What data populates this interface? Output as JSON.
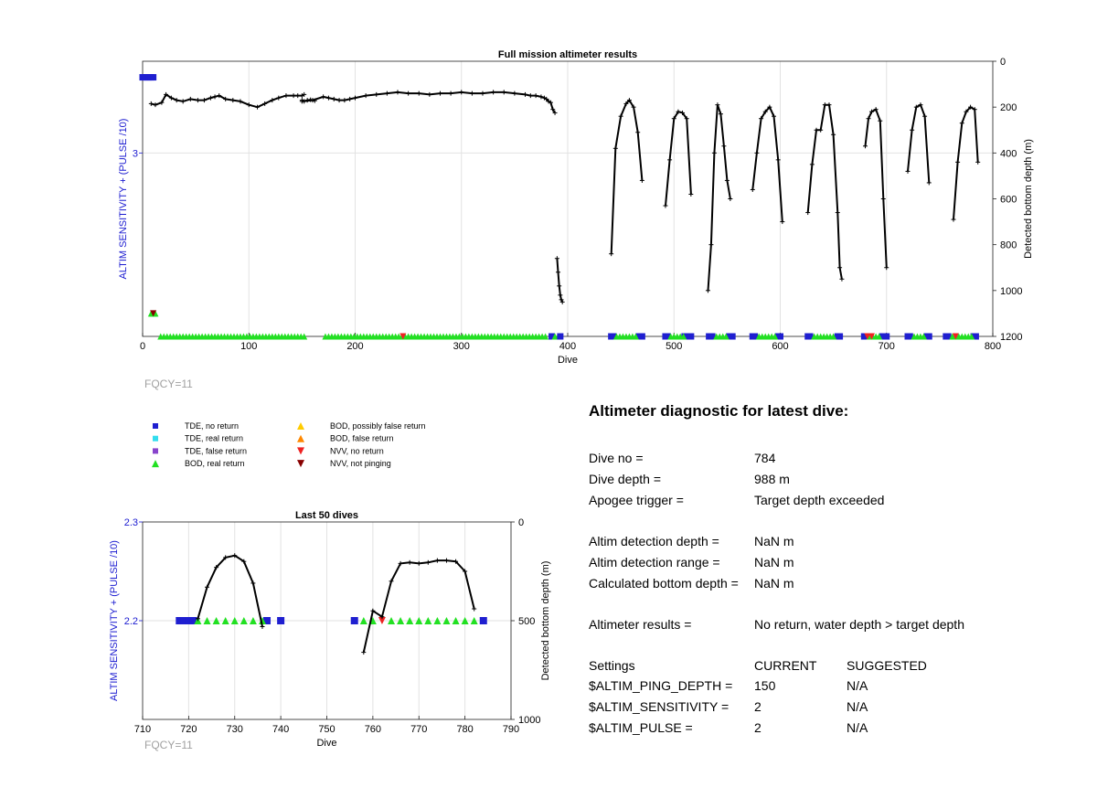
{
  "colors": {
    "tde_no_return": "#1f1fd0",
    "tde_real_return": "#33ddee",
    "tde_false_return": "#8844cc",
    "bod_real_return": "#22e022",
    "bod_possibly_false": "#ffcc00",
    "bod_false": "#ff8800",
    "nvv_no_return": "#ee2222",
    "nvv_not_pinging": "#880000",
    "altitude_line": "#000000",
    "left_axis": "#1a1ad0"
  },
  "legend": {
    "items": [
      {
        "label": "TDE, no return",
        "marker": "square",
        "color_key": "tde_no_return"
      },
      {
        "label": "TDE, real return",
        "marker": "square",
        "color_key": "tde_real_return"
      },
      {
        "label": "TDE, false return",
        "marker": "square",
        "color_key": "tde_false_return"
      },
      {
        "label": "BOD, real return",
        "marker": "triangle-up",
        "color_key": "bod_real_return"
      },
      {
        "label": "BOD, possibly false return",
        "marker": "triangle-up",
        "color_key": "bod_possibly_false"
      },
      {
        "label": "BOD, false return",
        "marker": "triangle-up",
        "color_key": "bod_false"
      },
      {
        "label": "NVV, no return",
        "marker": "triangle-down",
        "color_key": "nvv_no_return"
      },
      {
        "label": "NVV, not pinging",
        "marker": "triangle-down",
        "color_key": "nvv_not_pinging"
      }
    ]
  },
  "chart_data": [
    {
      "type": "scatter",
      "title": "Full mission altimeter results",
      "xlabel": "Dive",
      "ylabel_left": "ALTIM SENSITIVITY + (PULSE /10)",
      "ylabel_right": "Detected bottom depth (m)",
      "xlim": [
        0,
        800
      ],
      "xticks": [
        0,
        100,
        200,
        300,
        400,
        500,
        600,
        700,
        800
      ],
      "ylim_left": [
        2.2,
        3.4
      ],
      "yticks_left": [
        3
      ],
      "ylim_right": [
        1200,
        0
      ],
      "yticks_right": [
        0,
        200,
        400,
        600,
        800,
        1000,
        1200
      ],
      "grid": true,
      "footnote": "FQCY=11",
      "depth_segments": [
        {
          "x": [
            8,
            12,
            18,
            22,
            27,
            32,
            38,
            45,
            52,
            58,
            64,
            68,
            72,
            78,
            85,
            92,
            100,
            108,
            115,
            122,
            128,
            135,
            142,
            146,
            150,
            152
          ],
          "y": [
            185,
            190,
            180,
            145,
            160,
            170,
            175,
            165,
            170,
            170,
            160,
            155,
            150,
            165,
            170,
            175,
            190,
            200,
            185,
            170,
            160,
            150,
            150,
            150,
            150,
            145
          ],
          "marker": true
        },
        {
          "x": [
            150,
            152,
            155,
            158,
            162
          ],
          "y": [
            170,
            175,
            170,
            168,
            172
          ],
          "marker": true
        },
        {
          "x": [
            150,
            160,
            170,
            175,
            180,
            185,
            190,
            195,
            200,
            210,
            220,
            230,
            240,
            250,
            260,
            270,
            280,
            290,
            300,
            310,
            320,
            330,
            340,
            350,
            360,
            365,
            370,
            375,
            378,
            380,
            382,
            384,
            386,
            388
          ],
          "y": [
            175,
            170,
            155,
            160,
            165,
            170,
            170,
            165,
            160,
            150,
            145,
            140,
            135,
            140,
            140,
            145,
            140,
            140,
            135,
            140,
            140,
            135,
            135,
            140,
            145,
            150,
            150,
            155,
            160,
            165,
            175,
            180,
            210,
            225
          ],
          "marker": true
        },
        {
          "x": [
            390,
            391,
            392,
            393,
            394,
            395
          ],
          "y": [
            860,
            920,
            980,
            1020,
            1040,
            1050
          ],
          "marker": true
        },
        {
          "x": [
            441,
            445,
            450,
            455,
            458,
            462,
            466,
            470
          ],
          "y": [
            840,
            380,
            240,
            185,
            170,
            200,
            310,
            520
          ],
          "marker": true
        },
        {
          "x": [
            492,
            496,
            500,
            504,
            508,
            512,
            516
          ],
          "y": [
            630,
            430,
            250,
            220,
            225,
            250,
            580
          ],
          "marker": true
        },
        {
          "x": [
            532,
            535,
            538,
            541,
            544,
            547,
            550,
            553
          ],
          "y": [
            1000,
            800,
            400,
            190,
            230,
            370,
            520,
            600
          ],
          "marker": true
        },
        {
          "x": [
            574,
            578,
            582,
            586,
            590,
            594,
            598,
            602
          ],
          "y": [
            560,
            400,
            250,
            220,
            200,
            240,
            430,
            700
          ],
          "marker": true
        },
        {
          "x": [
            626,
            630,
            634,
            638,
            642,
            646,
            650,
            654,
            656,
            658
          ],
          "y": [
            660,
            450,
            300,
            300,
            190,
            190,
            320,
            660,
            900,
            950
          ],
          "marker": true
        },
        {
          "x": [
            680,
            683,
            686,
            690,
            694,
            697,
            700
          ],
          "y": [
            370,
            250,
            220,
            210,
            260,
            600,
            900
          ],
          "marker": true
        },
        {
          "x": [
            720,
            724,
            728,
            732,
            736,
            740
          ],
          "y": [
            480,
            300,
            200,
            190,
            240,
            530
          ],
          "marker": true
        },
        {
          "x": [
            763,
            767,
            771,
            775,
            779,
            783,
            786
          ],
          "y": [
            690,
            440,
            270,
            220,
            200,
            210,
            440
          ],
          "marker": true
        }
      ],
      "bottom_markers": [
        {
          "x": [
            8,
            9,
            10,
            11,
            12
          ],
          "y_left": 2.3,
          "kind": "bod_real_return"
        },
        {
          "x": [
            10
          ],
          "y_left": 2.3,
          "kind": "nvv_not_pinging"
        },
        {
          "x": [
            17,
            20,
            23,
            26,
            29,
            32,
            35,
            38,
            41,
            44,
            47,
            50,
            53,
            56,
            59,
            62,
            65,
            68,
            71,
            74,
            77,
            80,
            83,
            86,
            89,
            92,
            95,
            98,
            101,
            104,
            107,
            110,
            113,
            116,
            119,
            122,
            125,
            128,
            131,
            134,
            137,
            140,
            143,
            146,
            149,
            152
          ],
          "y_left": 2.2,
          "kind": "bod_real_return"
        },
        {
          "x": [
            172,
            175,
            178,
            181,
            184,
            187,
            190,
            193,
            196,
            199,
            202,
            205,
            208,
            211,
            214,
            217,
            220,
            223,
            226,
            229,
            232,
            235,
            238,
            241,
            244,
            247,
            250,
            253,
            256,
            259,
            262,
            265,
            268,
            271,
            274,
            277,
            280,
            283,
            286,
            289,
            292,
            295,
            298,
            301,
            304,
            307,
            310,
            313,
            316,
            319,
            322,
            325,
            328,
            331,
            334,
            337,
            340,
            343,
            346,
            349,
            352,
            355,
            358,
            361,
            364,
            367,
            370,
            373,
            376,
            379
          ],
          "y_left": 2.2,
          "kind": "bod_real_return"
        },
        {
          "x": [
            245
          ],
          "y_left": 2.2,
          "kind": "nvv_no_return"
        },
        {
          "x": [
            385
          ],
          "y_left": 2.2,
          "kind": "tde_no_return"
        },
        {
          "x": [
            388,
            391
          ],
          "y_left": 2.2,
          "kind": "bod_real_return"
        },
        {
          "x": [
            393
          ],
          "y_left": 2.2,
          "kind": "tde_no_return"
        },
        {
          "x": [
            441,
            443,
            467,
            470
          ],
          "y_left": 2.2,
          "kind": "tde_no_return"
        },
        {
          "x": [
            446,
            449,
            452,
            455,
            458,
            461,
            464
          ],
          "y_left": 2.2,
          "kind": "bod_real_return"
        },
        {
          "x": [
            492,
            494,
            510,
            514,
            516
          ],
          "y_left": 2.2,
          "kind": "tde_no_return"
        },
        {
          "x": [
            497,
            500,
            503,
            506,
            509
          ],
          "y_left": 2.2,
          "kind": "bod_real_return"
        },
        {
          "x": [
            533,
            536,
            552,
            555
          ],
          "y_left": 2.2,
          "kind": "tde_no_return"
        },
        {
          "x": [
            540,
            543,
            546,
            549
          ],
          "y_left": 2.2,
          "kind": "bod_real_return"
        },
        {
          "x": [
            574,
            576,
            598,
            600
          ],
          "y_left": 2.2,
          "kind": "tde_no_return"
        },
        {
          "x": [
            580,
            583,
            586,
            589,
            592,
            595
          ],
          "y_left": 2.2,
          "kind": "bod_real_return"
        },
        {
          "x": [
            626,
            628,
            654,
            656
          ],
          "y_left": 2.2,
          "kind": "tde_no_return"
        },
        {
          "x": [
            632,
            635,
            638,
            641,
            644,
            647,
            650
          ],
          "y_left": 2.2,
          "kind": "bod_real_return"
        },
        {
          "x": [
            679,
            681,
            696,
            698,
            700
          ],
          "y_left": 2.2,
          "kind": "tde_no_return"
        },
        {
          "x": [
            684,
            687,
            690,
            693
          ],
          "y_left": 2.2,
          "kind": "bod_real_return"
        },
        {
          "x": [
            682,
            686
          ],
          "y_left": 2.2,
          "kind": "nvv_no_return"
        },
        {
          "x": [
            720,
            722,
            738,
            740
          ],
          "y_left": 2.2,
          "kind": "tde_no_return"
        },
        {
          "x": [
            726,
            729,
            732,
            735
          ],
          "y_left": 2.2,
          "kind": "bod_real_return"
        },
        {
          "x": [
            756,
            758,
            782,
            784
          ],
          "y_left": 2.2,
          "kind": "tde_no_return"
        },
        {
          "x": [
            762,
            765,
            768,
            771,
            774,
            777,
            780
          ],
          "y_left": 2.2,
          "kind": "bod_real_return"
        },
        {
          "x": [
            765
          ],
          "y_left": 2.2,
          "kind": "nvv_no_return"
        }
      ],
      "top_marker": {
        "x": [
          0,
          2,
          4,
          6,
          8,
          10
        ],
        "y_left": 3.33,
        "kind": "tde_no_return"
      }
    },
    {
      "type": "scatter",
      "title": "Last 50 dives",
      "xlabel": "Dive",
      "ylabel_left": "ALTIM SENSITIVITY + (PULSE /10)",
      "ylabel_right": "Detected bottom depth (m)",
      "xlim": [
        710,
        790
      ],
      "xticks": [
        710,
        720,
        730,
        740,
        750,
        760,
        770,
        780,
        790
      ],
      "ylim_left": [
        2.1,
        2.3
      ],
      "yticks_left": [
        2.2,
        2.3
      ],
      "ylim_right": [
        1000,
        0
      ],
      "yticks_right": [
        0,
        500,
        1000
      ],
      "grid": true,
      "footnote": "FQCY=11",
      "depth_segments": [
        {
          "x": [
            722,
            724,
            726,
            728,
            730,
            732,
            734,
            736
          ],
          "y": [
            490,
            330,
            230,
            180,
            170,
            200,
            310,
            530
          ],
          "marker": true
        },
        {
          "x": [
            758,
            760,
            762,
            764,
            766,
            768,
            770,
            772,
            774,
            776,
            778,
            780,
            782
          ],
          "y": [
            660,
            450,
            480,
            300,
            210,
            205,
            210,
            205,
            195,
            195,
            200,
            250,
            440
          ],
          "marker": true
        }
      ],
      "bottom_markers": [
        {
          "x": [
            718,
            719,
            720,
            721,
            737,
            740
          ],
          "y_left": 2.2,
          "kind": "tde_no_return"
        },
        {
          "x": [
            722,
            724,
            726,
            728,
            730,
            732,
            734,
            736
          ],
          "y_left": 2.2,
          "kind": "bod_real_return"
        },
        {
          "x": [
            756,
            784
          ],
          "y_left": 2.2,
          "kind": "tde_no_return"
        },
        {
          "x": [
            758,
            760,
            764,
            766,
            768,
            770,
            772,
            774,
            776,
            778,
            780,
            782
          ],
          "y_left": 2.2,
          "kind": "bod_real_return"
        },
        {
          "x": [
            762
          ],
          "y_left": 2.2,
          "kind": "nvv_no_return"
        }
      ]
    }
  ],
  "diagnostic": {
    "title": "Altimeter diagnostic for latest dive:",
    "rows": [
      {
        "label": "Dive no =",
        "value": "784"
      },
      {
        "label": "Dive depth =",
        "value": "988 m"
      },
      {
        "label": "Apogee trigger =",
        "value": "Target depth exceeded"
      },
      {
        "label": "Altim detection depth =",
        "value": "NaN m"
      },
      {
        "label": "Altim detection range =",
        "value": "NaN m"
      },
      {
        "label": "Calculated bottom depth =",
        "value": "NaN m"
      },
      {
        "label": "Altimeter results =",
        "value": "No return, water depth > target depth"
      }
    ],
    "settings_header": {
      "label": "Settings",
      "current": "CURRENT",
      "suggested": "SUGGESTED"
    },
    "settings": [
      {
        "label": "$ALTIM_PING_DEPTH =",
        "current": "150",
        "suggested": "N/A"
      },
      {
        "label": "$ALTIM_SENSITIVITY =",
        "current": "2",
        "suggested": "N/A"
      },
      {
        "label": "$ALTIM_PULSE =",
        "current": "2",
        "suggested": "N/A"
      }
    ]
  }
}
